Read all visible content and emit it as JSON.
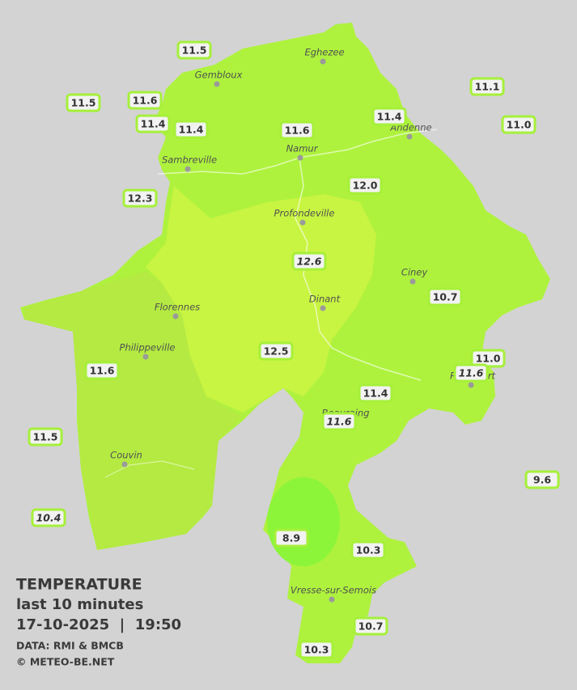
{
  "legend": {
    "title": "TEMPERATURE",
    "period": "last 10 minutes",
    "timestamp": "17-10-2025  |  19:50",
    "source": "DATA: RMI & BMCB",
    "credit": "© METEO-BE.NET"
  },
  "cities": [
    "Eghezee",
    "Gembloux",
    "Andenne",
    "Namur",
    "Sambreville",
    "Profondeville",
    "Ciney",
    "Dinant",
    "Florennes",
    "Philippeville",
    "Rochefort",
    "Beauraing",
    "Couvin",
    "Vresse-sur-Semois"
  ],
  "stations": [
    {
      "reading": "11.5",
      "italic": false
    },
    {
      "reading": "11.5",
      "italic": false
    },
    {
      "reading": "11.6",
      "italic": false
    },
    {
      "reading": "11.4",
      "italic": false
    },
    {
      "reading": "11.4",
      "italic": false
    },
    {
      "reading": "11.6",
      "italic": false
    },
    {
      "reading": "11.4",
      "italic": false
    },
    {
      "reading": "11.1",
      "italic": false
    },
    {
      "reading": "11.0",
      "italic": false
    },
    {
      "reading": "12.3",
      "italic": false
    },
    {
      "reading": "12.0",
      "italic": false
    },
    {
      "reading": "12.6",
      "italic": true
    },
    {
      "reading": "10.7",
      "italic": false
    },
    {
      "reading": "12.5",
      "italic": false
    },
    {
      "reading": "11.0",
      "italic": false
    },
    {
      "reading": "11.6",
      "italic": true
    },
    {
      "reading": "11.4",
      "italic": false
    },
    {
      "reading": "11.6",
      "italic": true
    },
    {
      "reading": "11.6",
      "italic": false
    },
    {
      "reading": "11.5",
      "italic": false
    },
    {
      "reading": "9.6",
      "italic": false
    },
    {
      "reading": "10.4",
      "italic": true
    },
    {
      "reading": "8.9",
      "italic": false
    },
    {
      "reading": "10.3",
      "italic": false
    },
    {
      "reading": "10.7",
      "italic": false
    },
    {
      "reading": "10.3",
      "italic": false
    }
  ]
}
